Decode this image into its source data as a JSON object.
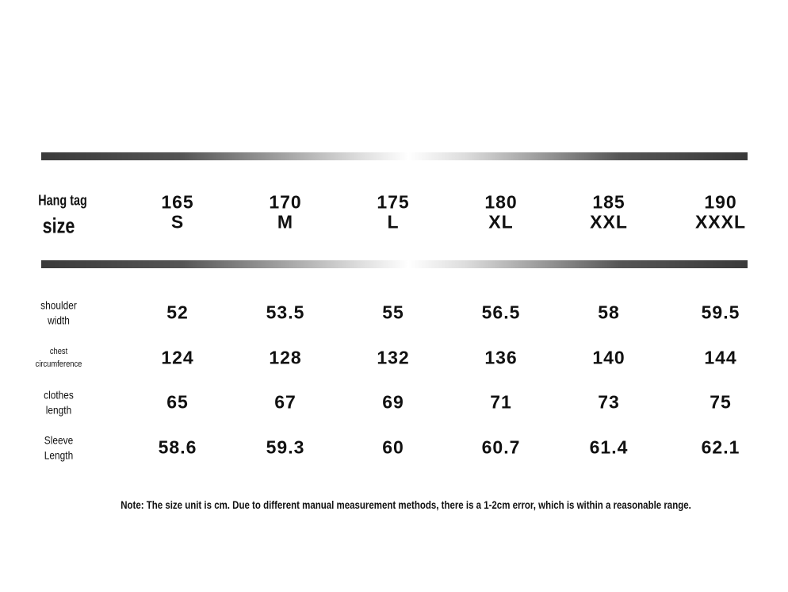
{
  "header": {
    "label": [
      "Hang tag",
      "size"
    ],
    "columns": [
      {
        "height": "165",
        "size": "S"
      },
      {
        "height": "170",
        "size": "M"
      },
      {
        "height": "175",
        "size": "L"
      },
      {
        "height": "180",
        "size": "XL"
      },
      {
        "height": "185",
        "size": "XXL"
      },
      {
        "height": "190",
        "size": "XXXL"
      }
    ]
  },
  "table": {
    "rows": [
      {
        "label": [
          "shoulder",
          "width"
        ],
        "values": [
          52,
          53.5,
          55,
          56.5,
          58,
          59.5
        ]
      },
      {
        "label": [
          "chest",
          "circumference"
        ],
        "values": [
          124,
          128,
          132,
          136,
          140,
          144
        ]
      },
      {
        "label": [
          "clothes",
          "length"
        ],
        "values": [
          65,
          67,
          69,
          71,
          73,
          75
        ]
      },
      {
        "label": [
          "Sleeve",
          "Length"
        ],
        "values": [
          58.6,
          59.3,
          60,
          60.7,
          61.4,
          62.1
        ]
      }
    ]
  },
  "note": "Note: The size unit is cm. Due to different manual measurement methods, there is a 1-2cm error, which is within a reasonable range."
}
